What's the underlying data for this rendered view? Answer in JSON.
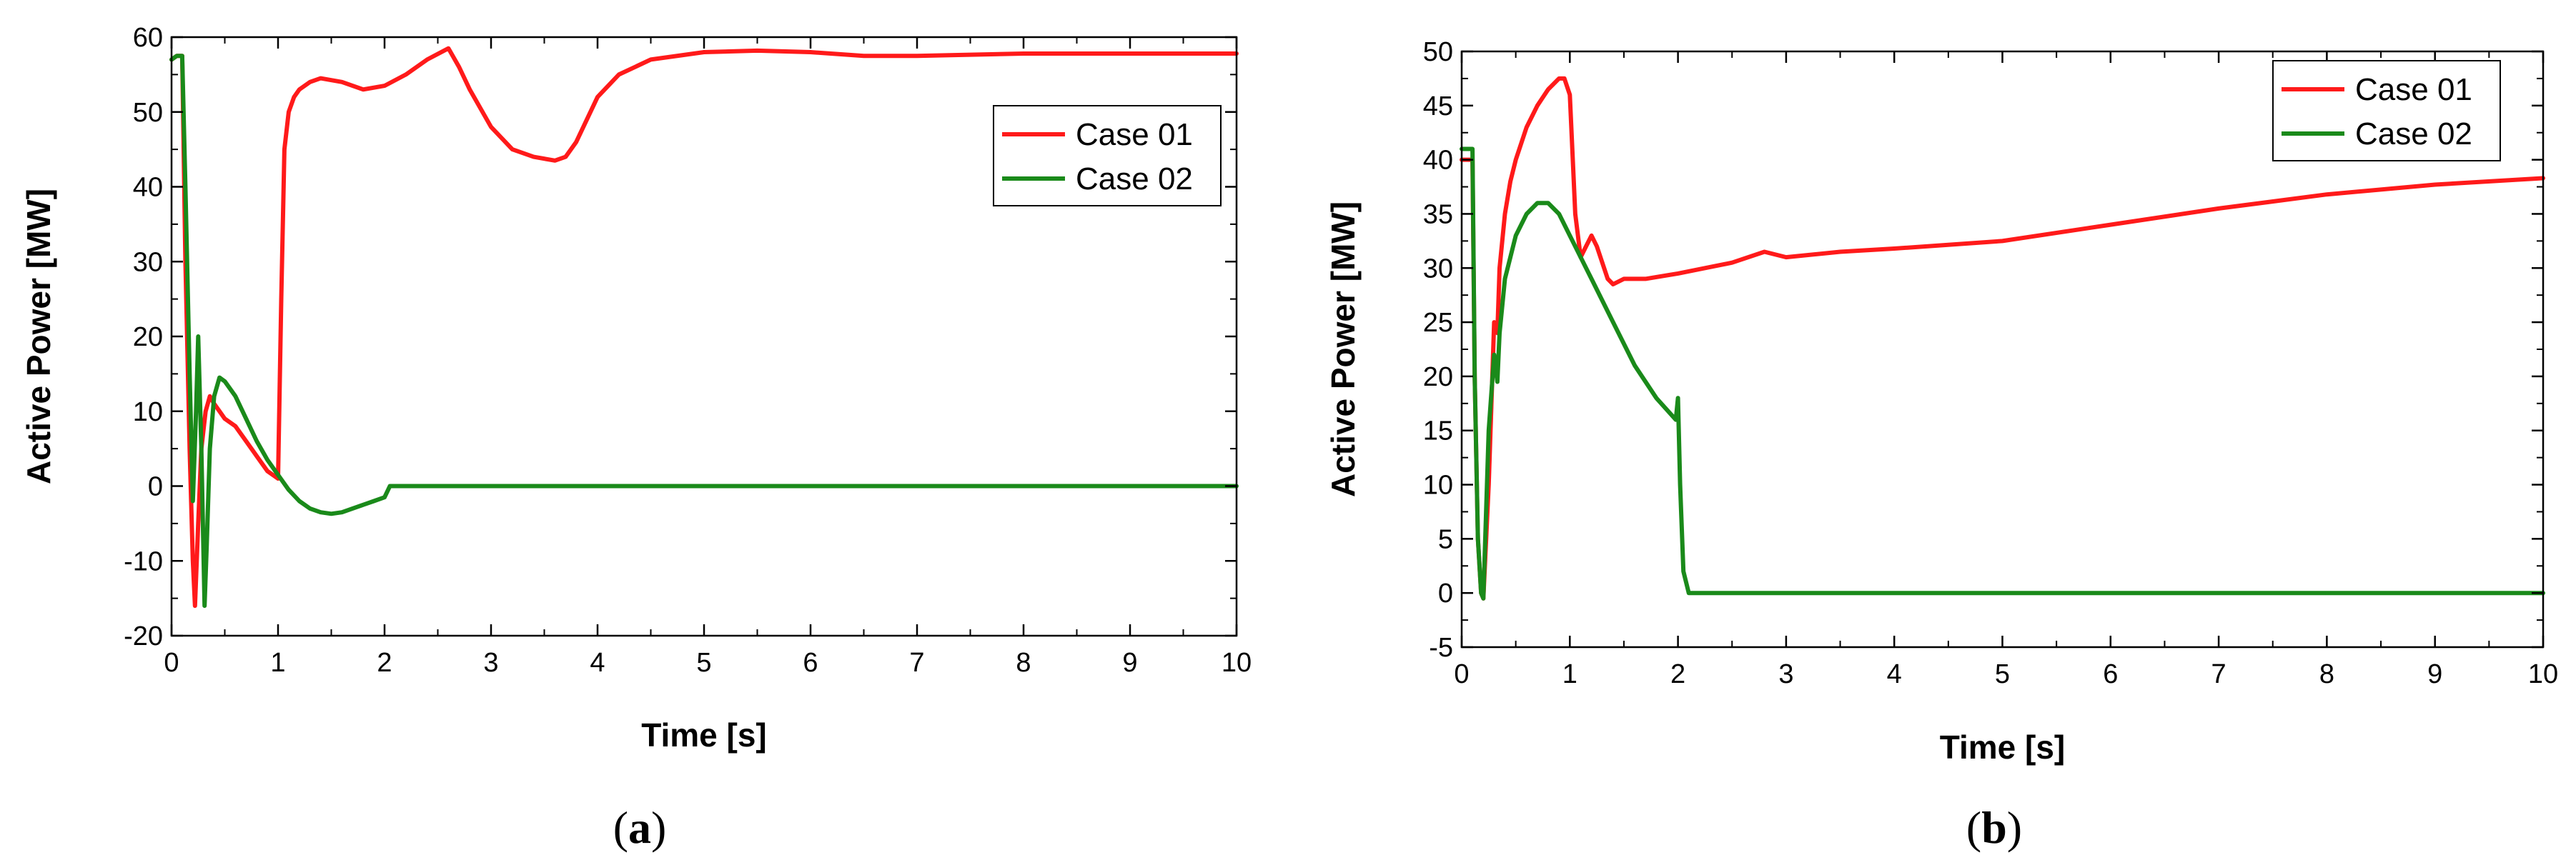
{
  "chart_data": [
    {
      "type": "line",
      "panel_label": "a",
      "xlabel": "Time [s]",
      "ylabel": "Active Power [MW]",
      "xlim": [
        0,
        10
      ],
      "ylim": [
        -20,
        60
      ],
      "xticks": [
        0,
        1,
        2,
        3,
        4,
        5,
        6,
        7,
        8,
        9,
        10
      ],
      "yticks": [
        -20,
        -10,
        0,
        10,
        20,
        30,
        40,
        50,
        60
      ],
      "legend_position": "top-right",
      "series": [
        {
          "name": "Case 01",
          "color": "#ff1a1a",
          "x": [
            0,
            0.05,
            0.1,
            0.13,
            0.17,
            0.2,
            0.22,
            0.25,
            0.28,
            0.32,
            0.36,
            0.4,
            0.45,
            0.5,
            0.6,
            0.7,
            0.8,
            0.9,
            1.0,
            1.03,
            1.06,
            1.1,
            1.15,
            1.2,
            1.3,
            1.4,
            1.6,
            1.8,
            2.0,
            2.2,
            2.4,
            2.6,
            2.7,
            2.8,
            3.0,
            3.2,
            3.4,
            3.6,
            3.7,
            3.8,
            4.0,
            4.2,
            4.5,
            5.0,
            5.5,
            6.0,
            6.5,
            7.0,
            8.0,
            9.0,
            10.0
          ],
          "y": [
            57,
            57.5,
            57.5,
            30,
            5,
            -10,
            -16,
            -5,
            5,
            10,
            12,
            11,
            10,
            9,
            8,
            6,
            4,
            2,
            1,
            25,
            45,
            50,
            52,
            53,
            54,
            54.5,
            54,
            53,
            53.5,
            55,
            57,
            58.5,
            56,
            53,
            48,
            45,
            44,
            43.5,
            44,
            46,
            52,
            55,
            57,
            58,
            58.2,
            58,
            57.5,
            57.5,
            57.8,
            57.8,
            57.8
          ]
        },
        {
          "name": "Case 02",
          "color": "#1a8a1a",
          "x": [
            0,
            0.05,
            0.1,
            0.13,
            0.17,
            0.2,
            0.23,
            0.25,
            0.28,
            0.31,
            0.33,
            0.36,
            0.4,
            0.45,
            0.5,
            0.6,
            0.7,
            0.8,
            0.9,
            1.0,
            1.1,
            1.2,
            1.3,
            1.4,
            1.5,
            1.6,
            1.7,
            1.8,
            1.9,
            2.0,
            2.05,
            2.1,
            3.0,
            4.0,
            5.0,
            6.0,
            7.0,
            8.0,
            9.0,
            10.0
          ],
          "y": [
            57,
            57.5,
            57.5,
            40,
            15,
            -2,
            10,
            20,
            5,
            -16,
            -8,
            5,
            12,
            14.5,
            14,
            12,
            9,
            6,
            3.5,
            1.5,
            -0.5,
            -2,
            -3,
            -3.5,
            -3.7,
            -3.5,
            -3,
            -2.5,
            -2,
            -1.5,
            0,
            0,
            0,
            0,
            0,
            0,
            0,
            0,
            0,
            0
          ]
        }
      ]
    },
    {
      "type": "line",
      "panel_label": "b",
      "xlabel": "Time [s]",
      "ylabel": "Active Power [MW]",
      "xlim": [
        0,
        10
      ],
      "ylim": [
        -5,
        50
      ],
      "xticks": [
        0,
        1,
        2,
        3,
        4,
        5,
        6,
        7,
        8,
        9,
        10
      ],
      "yticks": [
        -5,
        0,
        5,
        10,
        15,
        20,
        25,
        30,
        35,
        40,
        45,
        50
      ],
      "legend_position": "top-right",
      "series": [
        {
          "name": "Case 01",
          "color": "#ff1a1a",
          "x": [
            0,
            0.05,
            0.1,
            0.12,
            0.15,
            0.18,
            0.2,
            0.25,
            0.3,
            0.33,
            0.35,
            0.4,
            0.45,
            0.5,
            0.6,
            0.7,
            0.8,
            0.9,
            0.95,
            1.0,
            1.05,
            1.1,
            1.15,
            1.2,
            1.25,
            1.3,
            1.35,
            1.4,
            1.5,
            1.7,
            2.0,
            2.5,
            2.8,
            3.0,
            3.5,
            4.0,
            5.0,
            6.0,
            7.0,
            8.0,
            9.0,
            10.0
          ],
          "y": [
            40,
            40,
            40,
            20,
            5,
            0,
            -0.5,
            10,
            25,
            24,
            30,
            35,
            38,
            40,
            43,
            45,
            46.5,
            47.5,
            47.5,
            46,
            35,
            31,
            32,
            33,
            32,
            30.5,
            29,
            28.5,
            29,
            29,
            29.5,
            30.5,
            31.5,
            31,
            31.5,
            31.8,
            32.5,
            34,
            35.5,
            36.8,
            37.7,
            38.3
          ]
        },
        {
          "name": "Case 02",
          "color": "#1a8a1a",
          "x": [
            0,
            0.05,
            0.1,
            0.12,
            0.15,
            0.18,
            0.2,
            0.25,
            0.3,
            0.33,
            0.35,
            0.4,
            0.45,
            0.5,
            0.6,
            0.7,
            0.8,
            0.9,
            1.0,
            1.2,
            1.4,
            1.6,
            1.8,
            1.98,
            2.0,
            2.02,
            2.05,
            2.1,
            2.2,
            3.0,
            4.0,
            5.0,
            6.0,
            7.0,
            8.0,
            9.0,
            10.0
          ],
          "y": [
            41,
            41,
            41,
            20,
            5,
            0,
            -0.5,
            15,
            22,
            19.5,
            24,
            29,
            31,
            33,
            35,
            36,
            36,
            35,
            33,
            29,
            25,
            21,
            18,
            16,
            18,
            10,
            2,
            0,
            0,
            0,
            0,
            0,
            0,
            0,
            0,
            0,
            0
          ]
        }
      ]
    }
  ]
}
